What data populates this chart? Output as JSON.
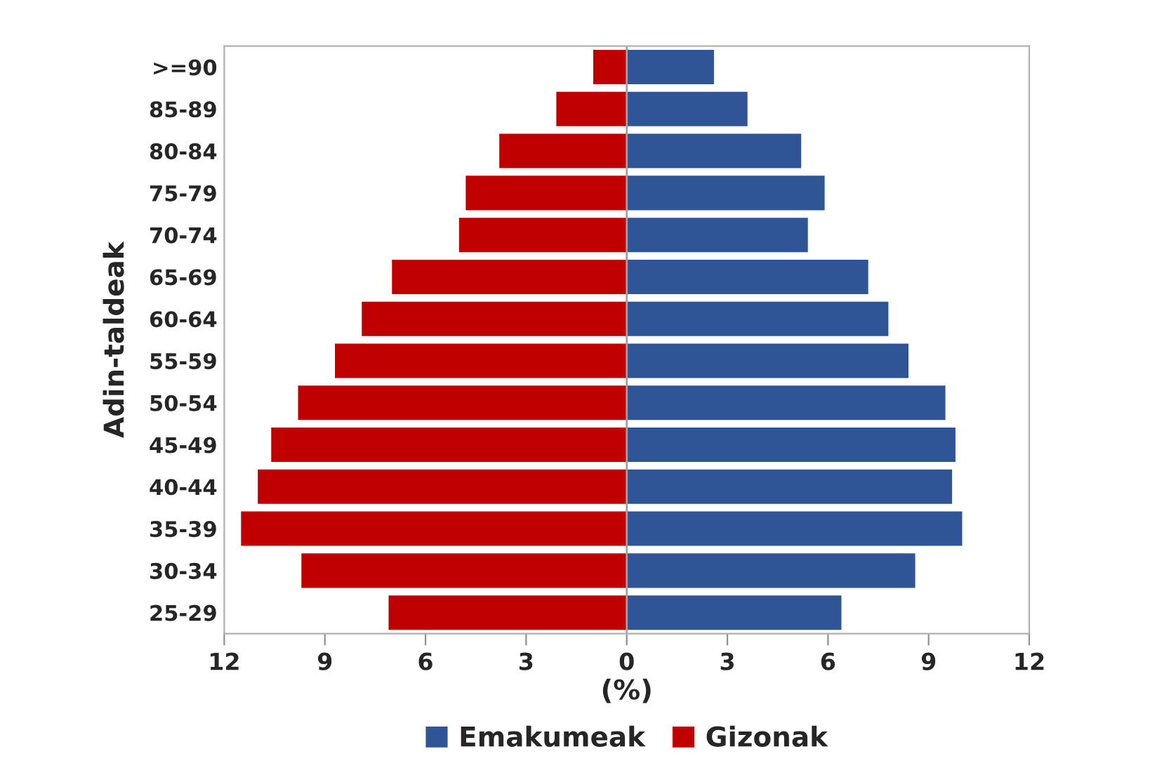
{
  "chart_data": {
    "type": "bar",
    "orientation": "horizontal",
    "stacked": true,
    "categories": [
      ">=90",
      "85-89",
      "80-84",
      "75-79",
      "70-74",
      "65-69",
      "60-64",
      "55-59",
      "50-54",
      "45-49",
      "40-44",
      "35-39",
      "30-34",
      "25-29"
    ],
    "series": [
      {
        "name": "Emakumeak",
        "color": "#2f5597",
        "values": [
          2.6,
          3.6,
          5.2,
          5.9,
          5.4,
          7.2,
          7.8,
          8.4,
          9.5,
          9.8,
          9.7,
          10.0,
          8.6,
          6.4
        ]
      },
      {
        "name": "Gizonak",
        "color": "#c00000",
        "values": [
          -1.0,
          -2.1,
          -3.8,
          -4.8,
          -5.0,
          -7.0,
          -7.9,
          -8.7,
          -9.8,
          -10.6,
          -11.0,
          -11.5,
          -9.7,
          -7.1
        ]
      }
    ],
    "xlim": [
      -12,
      12
    ],
    "xticks": [
      {
        "value": -12,
        "label": "12"
      },
      {
        "value": -9,
        "label": "9"
      },
      {
        "value": -6,
        "label": "6"
      },
      {
        "value": -3,
        "label": "3"
      },
      0,
      3,
      6,
      9,
      12
    ],
    "ref_lines": [
      {
        "axis": "x",
        "value": 0,
        "color": "#a0a0a0"
      }
    ],
    "xlabel": "(%)",
    "ylabel": "Adin-taldeak",
    "legend": "bottom"
  }
}
